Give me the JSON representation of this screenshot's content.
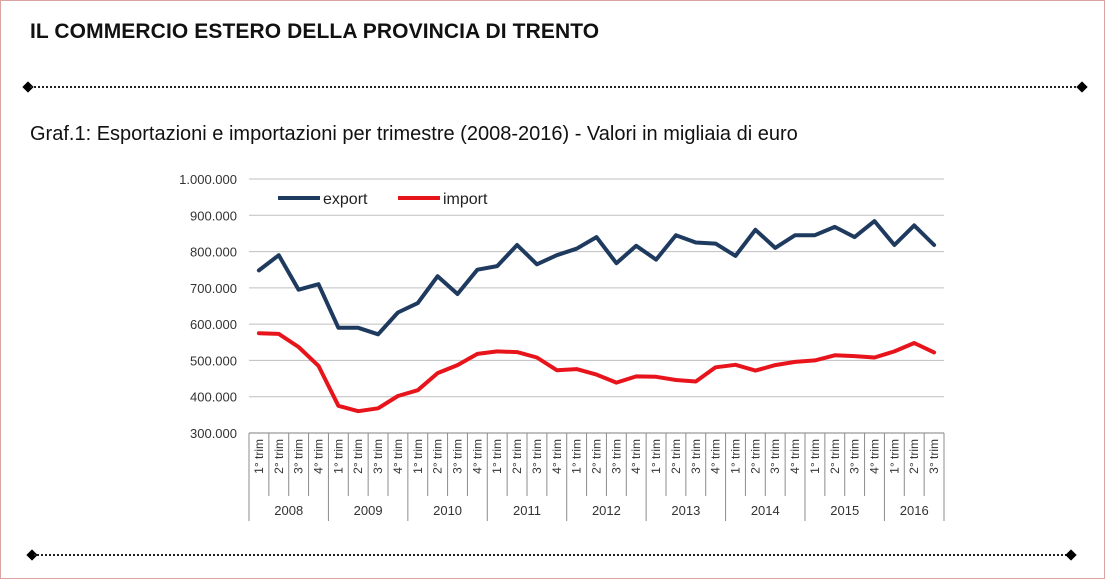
{
  "page": {
    "title": "IL COMMERCIO ESTERO DELLA PROVINCIA DI TRENTO",
    "subtitle": "Graf.1:  Esportazioni e importazioni per trimestre (2008-2016) - Valori in migliaia di euro"
  },
  "chart_data": {
    "type": "line",
    "title": "",
    "xlabel": "",
    "ylabel": "",
    "ylim": [
      300000,
      1000000
    ],
    "yticks": [
      "300.000",
      "400.000",
      "500.000",
      "600.000",
      "700.000",
      "800.000",
      "900.000",
      "1.000.000"
    ],
    "grid": true,
    "legend_position": "top-left",
    "years": [
      "2008",
      "2009",
      "2010",
      "2011",
      "2012",
      "2013",
      "2014",
      "2015",
      "2016"
    ],
    "quarter_labels": [
      "1° trim",
      "2° trim",
      "3° trim",
      "4° trim"
    ],
    "categories": [
      "2008 1° trim",
      "2008 2° trim",
      "2008 3° trim",
      "2008 4° trim",
      "2009 1° trim",
      "2009 2° trim",
      "2009 3° trim",
      "2009 4° trim",
      "2010 1° trim",
      "2010 2° trim",
      "2010 3° trim",
      "2010 4° trim",
      "2011 1° trim",
      "2011 2° trim",
      "2011 3° trim",
      "2011 4° trim",
      "2012 1° trim",
      "2012 2° trim",
      "2012 3° trim",
      "2012 4° trim",
      "2013 1° trim",
      "2013 2° trim",
      "2013 3° trim",
      "2013 4° trim",
      "2014 1° trim",
      "2014 2° trim",
      "2014 3° trim",
      "2014 4° trim",
      "2015 1° trim",
      "2015 2° trim",
      "2015 3° trim",
      "2015 4° trim",
      "2016 1° trim",
      "2016 2° trim",
      "2016 3° trim"
    ],
    "series": [
      {
        "name": "export",
        "color": "#1f3a5f",
        "values": [
          748000,
          790000,
          695000,
          710000,
          590000,
          590000,
          572000,
          632000,
          658000,
          732000,
          683000,
          750000,
          760000,
          818000,
          765000,
          790000,
          808000,
          840000,
          768000,
          816000,
          778000,
          845000,
          825000,
          822000,
          788000,
          860000,
          810000,
          845000,
          845000,
          868000,
          840000,
          884000,
          818000,
          872000,
          818000
        ]
      },
      {
        "name": "import",
        "color": "#e8141c",
        "values": [
          575000,
          573000,
          537000,
          485000,
          375000,
          360000,
          368000,
          402000,
          418000,
          465000,
          487000,
          518000,
          525000,
          523000,
          508000,
          473000,
          476000,
          461000,
          439000,
          456000,
          455000,
          446000,
          442000,
          481000,
          488000,
          472000,
          487000,
          496000,
          500000,
          514000,
          512000,
          508000,
          525000,
          548000,
          522000
        ]
      }
    ]
  }
}
